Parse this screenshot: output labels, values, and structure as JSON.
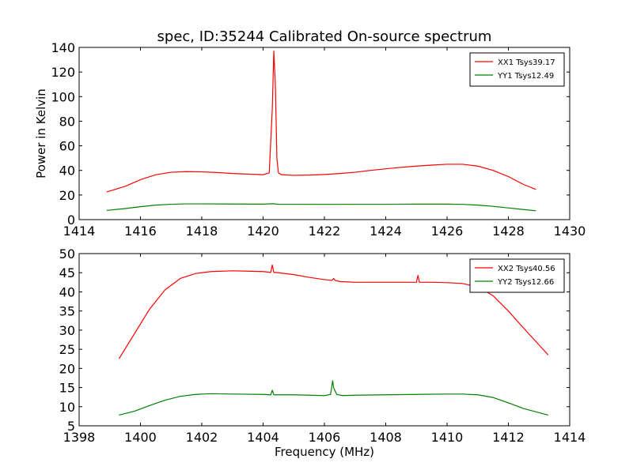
{
  "chart_data": [
    {
      "type": "line",
      "title": "spec, ID:35244 Calibrated On-source spectrum",
      "xlabel": "",
      "ylabel": "Power in Kelvin",
      "xlim": [
        1414,
        1430
      ],
      "ylim": [
        0,
        140
      ],
      "xticks": [
        "1414",
        "1416",
        "1418",
        "1420",
        "1422",
        "1424",
        "1426",
        "1428",
        "1430"
      ],
      "yticks": [
        "0",
        "20",
        "40",
        "60",
        "80",
        "100",
        "120",
        "140"
      ],
      "legend_position": "top-right",
      "series": [
        {
          "name": "XX1 Tsys39.17",
          "color": "#ff0000",
          "x": [
            1414.9,
            1415.5,
            1416.0,
            1416.5,
            1417.0,
            1417.5,
            1418.0,
            1418.5,
            1419.0,
            1419.5,
            1420.0,
            1420.2,
            1420.3,
            1420.35,
            1420.4,
            1420.45,
            1420.5,
            1420.6,
            1421.0,
            1421.5,
            1422.0,
            1422.5,
            1423.0,
            1423.5,
            1424.0,
            1424.5,
            1425.0,
            1425.5,
            1426.0,
            1426.5,
            1427.0,
            1427.5,
            1428.0,
            1428.5,
            1428.9
          ],
          "y": [
            22.5,
            27,
            32.5,
            36.5,
            38.5,
            39,
            38.8,
            38.3,
            37.5,
            37,
            36.5,
            38,
            90,
            137,
            110,
            50,
            38,
            36.5,
            36,
            36.2,
            36.7,
            37.5,
            38.5,
            40,
            41.3,
            42.5,
            43.5,
            44.3,
            45,
            45,
            43.5,
            40,
            35,
            28.5,
            24.5
          ]
        },
        {
          "name": "YY1 Tsys12.49",
          "color": "#008000",
          "x": [
            1414.9,
            1415.5,
            1416.0,
            1416.5,
            1417.0,
            1417.5,
            1418.0,
            1419.0,
            1420.0,
            1420.3,
            1420.5,
            1421.0,
            1422.0,
            1423.0,
            1424.0,
            1425.0,
            1426.0,
            1426.5,
            1427.0,
            1427.5,
            1428.0,
            1428.5,
            1428.9
          ],
          "y": [
            7.5,
            9,
            10.5,
            11.8,
            12.5,
            12.8,
            12.8,
            12.7,
            12.6,
            12.9,
            12.5,
            12.5,
            12.4,
            12.5,
            12.5,
            12.6,
            12.6,
            12.4,
            11.8,
            10.8,
            9.5,
            8.2,
            7.2
          ]
        }
      ]
    },
    {
      "type": "line",
      "title": "",
      "xlabel": "Frequency (MHz)",
      "ylabel": "",
      "xlim": [
        1398,
        1414
      ],
      "ylim": [
        5,
        50
      ],
      "xticks": [
        "1398",
        "1400",
        "1402",
        "1404",
        "1406",
        "1408",
        "1410",
        "1412",
        "1414"
      ],
      "yticks": [
        "5",
        "10",
        "15",
        "20",
        "25",
        "30",
        "35",
        "40",
        "45",
        "50"
      ],
      "legend_position": "top-right",
      "series": [
        {
          "name": "XX2 Tsys40.56",
          "color": "#ff0000",
          "x": [
            1399.3,
            1399.8,
            1400.3,
            1400.8,
            1401.3,
            1401.8,
            1402.3,
            1403.0,
            1403.5,
            1404.0,
            1404.25,
            1404.3,
            1404.35,
            1404.5,
            1405.0,
            1405.5,
            1406.0,
            1406.25,
            1406.3,
            1406.35,
            1406.5,
            1407.0,
            1408.0,
            1409.0,
            1409.05,
            1409.1,
            1409.5,
            1410.0,
            1410.5,
            1411.0,
            1411.5,
            1412.0,
            1412.5,
            1413.3
          ],
          "y": [
            22.5,
            29,
            35.5,
            40.5,
            43.5,
            44.8,
            45.3,
            45.5,
            45.4,
            45.3,
            45.1,
            47,
            45.1,
            45,
            44.5,
            43.8,
            43.2,
            43,
            43.5,
            43,
            42.7,
            42.5,
            42.5,
            42.5,
            44.3,
            42.5,
            42.5,
            42.4,
            42.2,
            41.3,
            39,
            35,
            30.5,
            23.5
          ]
        },
        {
          "name": "YY2 Tsys12.66",
          "color": "#008000",
          "x": [
            1399.3,
            1399.8,
            1400.3,
            1400.8,
            1401.3,
            1401.8,
            1402.3,
            1403.0,
            1404.0,
            1404.25,
            1404.3,
            1404.35,
            1405.0,
            1406.0,
            1406.2,
            1406.27,
            1406.3,
            1406.4,
            1406.6,
            1407.0,
            1408.0,
            1409.0,
            1410.0,
            1410.5,
            1411.0,
            1411.5,
            1412.0,
            1412.5,
            1413.3
          ],
          "y": [
            7.8,
            8.8,
            10.3,
            11.7,
            12.7,
            13.2,
            13.4,
            13.3,
            13.2,
            13.1,
            14.3,
            13.1,
            13.1,
            12.9,
            13.2,
            16.8,
            15,
            13.2,
            12.9,
            13,
            13.1,
            13.2,
            13.3,
            13.3,
            13.1,
            12.4,
            11,
            9.5,
            7.8
          ]
        }
      ]
    }
  ]
}
